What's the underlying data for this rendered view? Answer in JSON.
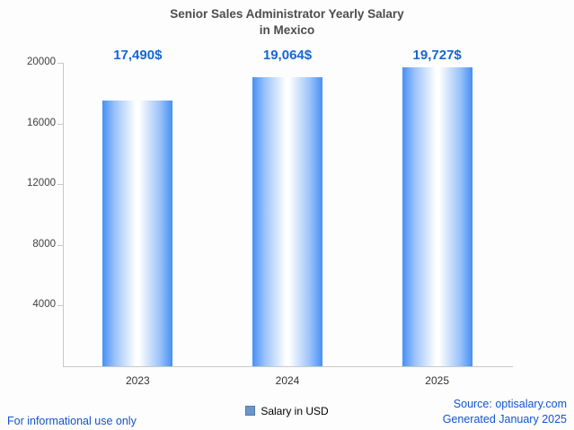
{
  "title": {
    "line1": "Senior Sales Administrator Yearly Salary",
    "line2": "in Mexico"
  },
  "chart_data": {
    "type": "bar",
    "title": "Senior Sales Administrator Yearly Salary in Mexico",
    "categories": [
      "2023",
      "2024",
      "2025"
    ],
    "series": [
      {
        "name": "Salary in USD",
        "values": [
          17490,
          19064,
          19727
        ]
      }
    ],
    "value_labels": [
      "17,490$",
      "19,064$",
      "19,727$"
    ],
    "ylim": [
      0,
      20000
    ],
    "yticks": [
      "4000",
      "8000",
      "12000",
      "16000",
      "20000"
    ],
    "grid": "off",
    "legend_label": "Salary in USD",
    "legend_position": "bottom"
  },
  "footer": {
    "left": "For informational use only",
    "source": "Source: optisalary.com",
    "generated": "Generated January 2025"
  },
  "colors": {
    "bar_edge_blue": "#4690f4",
    "value_label_blue": "#1567d2",
    "link_blue": "#1155cc",
    "axis_gray": "#c9c9c9"
  }
}
